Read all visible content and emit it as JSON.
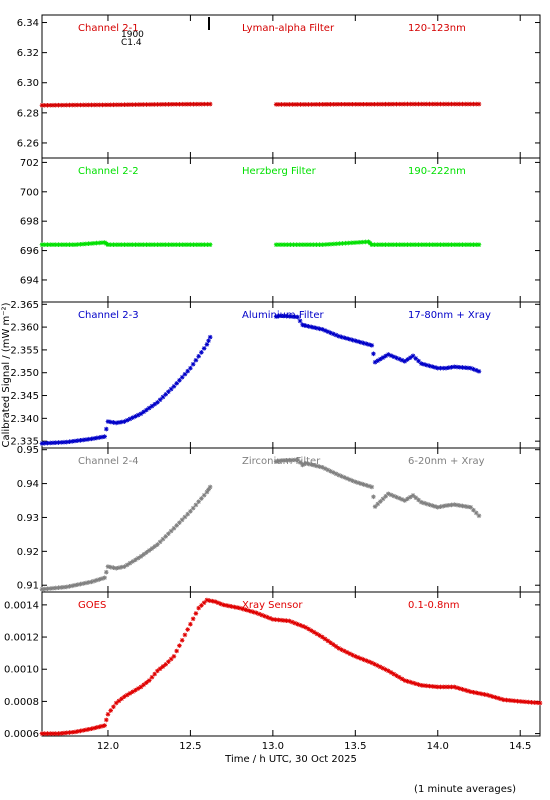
{
  "figure": {
    "ylabel": "Calibrated Signal / (mW m⁻²)",
    "xlabel": "Time / h UTC, 30 Oct 2025",
    "footnote": "(1 minute averages)",
    "marker_text_1": "1900",
    "marker_text_2": "C1.4",
    "x_ticks": [
      "12.0",
      "12.5",
      "13.0",
      "13.5",
      "14.0",
      "14.5"
    ]
  },
  "chart_data": [
    {
      "type": "scatter",
      "labels": [
        "Channel 2-1",
        "Lyman-alpha Filter",
        "120-123nm"
      ],
      "color": "#d40000",
      "xlim": [
        11.6,
        14.62
      ],
      "ylim": [
        6.25,
        6.345
      ],
      "yticks": [
        "6.26",
        "6.28",
        "6.30",
        "6.32",
        "6.34"
      ],
      "ytick_values": [
        6.26,
        6.28,
        6.3,
        6.32,
        6.34
      ],
      "series": [
        {
          "x": [
            11.6,
            11.8,
            12.0,
            12.2,
            12.4,
            12.62
          ],
          "y": [
            6.285,
            6.2852,
            6.2853,
            6.2855,
            6.2857,
            6.2858
          ]
        },
        {
          "x": [
            13.02,
            13.2,
            13.4,
            13.6,
            13.8,
            14.0,
            14.25
          ],
          "y": [
            6.2856,
            6.2856,
            6.2857,
            6.2857,
            6.2858,
            6.2858,
            6.2858
          ]
        }
      ]
    },
    {
      "type": "scatter",
      "labels": [
        "Channel 2-2",
        "Herzberg Filter",
        "190-222nm"
      ],
      "color": "#00e000",
      "xlim": [
        11.6,
        14.62
      ],
      "ylim": [
        692.5,
        702.3
      ],
      "yticks": [
        "694",
        "696",
        "698",
        "700",
        "702"
      ],
      "ytick_values": [
        694,
        696,
        698,
        700,
        702
      ],
      "series": [
        {
          "x": [
            11.6,
            11.8,
            11.98,
            12.0,
            12.2,
            12.4,
            12.62
          ],
          "y": [
            696.4,
            696.4,
            696.55,
            696.4,
            696.4,
            696.4,
            696.4
          ]
        },
        {
          "x": [
            13.02,
            13.3,
            13.58,
            13.6,
            13.8,
            14.0,
            14.25
          ],
          "y": [
            696.4,
            696.4,
            696.6,
            696.4,
            696.4,
            696.4,
            696.4
          ]
        }
      ]
    },
    {
      "type": "scatter",
      "labels": [
        "Channel 2-3",
        "Aluminium Filter",
        "17-80nm + Xray"
      ],
      "color": "#0000c8",
      "xlim": [
        11.6,
        14.62
      ],
      "ylim": [
        2.3335,
        2.3655
      ],
      "yticks": [
        "2.335",
        "2.340",
        "2.345",
        "2.350",
        "2.355",
        "2.360",
        "2.365"
      ],
      "ytick_values": [
        2.335,
        2.34,
        2.345,
        2.35,
        2.355,
        2.36,
        2.365
      ],
      "series": [
        {
          "x": [
            11.6,
            11.75,
            11.9,
            11.98,
            12.0,
            12.05,
            12.1,
            12.2,
            12.3,
            12.4,
            12.5,
            12.6,
            12.62
          ],
          "y": [
            2.3345,
            2.3348,
            2.3355,
            2.336,
            2.3393,
            2.339,
            2.3393,
            2.341,
            2.3435,
            2.347,
            2.351,
            2.3562,
            2.3578
          ]
        },
        {
          "x": [
            13.02,
            13.05,
            13.15,
            13.18,
            13.2,
            13.3,
            13.4,
            13.5,
            13.6,
            13.62,
            13.7,
            13.8,
            13.85,
            13.9,
            14.0,
            14.05,
            14.1,
            14.2,
            14.25
          ],
          "y": [
            2.3623,
            2.3625,
            2.3622,
            2.3605,
            2.3603,
            2.3595,
            2.358,
            2.357,
            2.356,
            2.3523,
            2.354,
            2.3525,
            2.3537,
            2.352,
            2.351,
            2.351,
            2.3513,
            2.351,
            2.3503
          ]
        }
      ]
    },
    {
      "type": "scatter",
      "labels": [
        "Channel 2-4",
        "Zirconium Filter",
        "6-20nm + Xray"
      ],
      "color": "#808080",
      "xlim": [
        11.6,
        14.62
      ],
      "ylim": [
        0.908,
        0.9505
      ],
      "yticks": [
        "0.91",
        "0.92",
        "0.93",
        "0.94",
        "0.95"
      ],
      "ytick_values": [
        0.91,
        0.92,
        0.93,
        0.94,
        0.95
      ],
      "series": [
        {
          "x": [
            11.6,
            11.75,
            11.9,
            11.98,
            12.0,
            12.05,
            12.1,
            12.2,
            12.3,
            12.4,
            12.5,
            12.6,
            12.62
          ],
          "y": [
            0.9088,
            0.9095,
            0.911,
            0.9122,
            0.9155,
            0.915,
            0.9155,
            0.9185,
            0.922,
            0.9268,
            0.9318,
            0.9375,
            0.939
          ]
        },
        {
          "x": [
            13.02,
            13.05,
            13.15,
            13.18,
            13.2,
            13.3,
            13.4,
            13.5,
            13.6,
            13.62,
            13.7,
            13.8,
            13.85,
            13.9,
            14.0,
            14.05,
            14.1,
            14.2,
            14.25
          ],
          "y": [
            0.9465,
            0.9468,
            0.947,
            0.9455,
            0.946,
            0.9448,
            0.9425,
            0.9405,
            0.939,
            0.9332,
            0.937,
            0.935,
            0.9365,
            0.9345,
            0.933,
            0.9335,
            0.9338,
            0.933,
            0.9305
          ]
        }
      ]
    },
    {
      "type": "scatter",
      "labels": [
        "GOES",
        "Xray Sensor",
        "0.1-0.8nm"
      ],
      "color": "#e00000",
      "xlim": [
        11.6,
        14.62
      ],
      "ylim": [
        0.000585,
        0.00148
      ],
      "yticks": [
        "0.0006",
        "0.0008",
        "0.0010",
        "0.0012",
        "0.0014"
      ],
      "ytick_values": [
        0.0006,
        0.0008,
        0.001,
        0.0012,
        0.0014
      ],
      "series": [
        {
          "x": [
            11.6,
            11.7,
            11.8,
            11.9,
            11.98,
            12.0,
            12.05,
            12.1,
            12.15,
            12.2,
            12.25,
            12.3,
            12.35,
            12.4,
            12.45,
            12.5,
            12.55,
            12.6,
            12.65,
            12.7,
            12.8,
            12.9,
            13.0,
            13.1,
            13.2,
            13.3,
            13.4,
            13.5,
            13.6,
            13.7,
            13.8,
            13.9,
            14.0,
            14.1,
            14.2,
            14.3,
            14.4,
            14.5,
            14.62
          ],
          "y": [
            0.0006,
            0.0006,
            0.00061,
            0.00063,
            0.00065,
            0.00072,
            0.00079,
            0.00083,
            0.00086,
            0.00089,
            0.00093,
            0.00099,
            0.00103,
            0.00108,
            0.00118,
            0.00128,
            0.00138,
            0.00143,
            0.00142,
            0.0014,
            0.00138,
            0.00135,
            0.00131,
            0.0013,
            0.00126,
            0.0012,
            0.00113,
            0.00108,
            0.00104,
            0.00099,
            0.00093,
            0.0009,
            0.00089,
            0.00089,
            0.00086,
            0.00084,
            0.00081,
            0.0008,
            0.00079
          ]
        }
      ]
    }
  ]
}
